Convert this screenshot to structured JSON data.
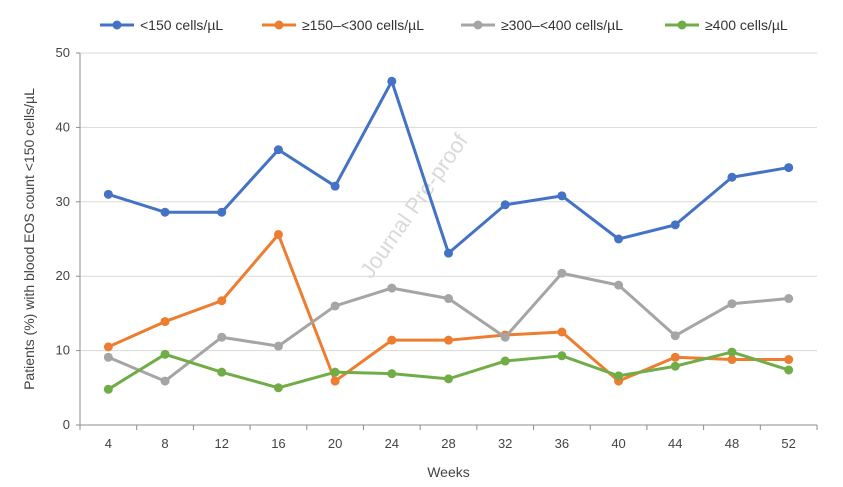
{
  "chart_data": {
    "type": "line",
    "xlabel": "Weeks",
    "ylabel": "Patients (%) with blood EOS count <150 cells/µL",
    "categories": [
      "4",
      "8",
      "12",
      "16",
      "20",
      "24",
      "28",
      "32",
      "36",
      "40",
      "44",
      "48",
      "52"
    ],
    "ylim": [
      0,
      50
    ],
    "yticks": [
      0,
      10,
      20,
      30,
      40,
      50
    ],
    "grid": true,
    "legend_position": "top",
    "watermark": "Journal Pre-proof",
    "series": [
      {
        "name": "<150 cells/µL",
        "color": "#4472C4",
        "values": [
          31,
          28.6,
          28.6,
          37,
          32.1,
          46.2,
          23.1,
          29.6,
          30.8,
          25,
          26.9,
          33.3,
          34.6
        ]
      },
      {
        "name": "≥150–<300 cells/µL",
        "color": "#ED7D31",
        "values": [
          10.5,
          13.9,
          16.7,
          25.6,
          5.9,
          11.4,
          11.4,
          12.1,
          12.5,
          5.9,
          9.1,
          8.8,
          8.8
        ]
      },
      {
        "name": "≥300–<400 cells/µL",
        "color": "#A5A5A5",
        "values": [
          9.1,
          5.9,
          11.8,
          10.6,
          16,
          18.4,
          17,
          11.8,
          20.4,
          18.8,
          12,
          16.3,
          17
        ]
      },
      {
        "name": "≥400 cells/µL",
        "color": "#70AD47",
        "values": [
          4.8,
          9.5,
          7.1,
          5,
          7.1,
          6.9,
          6.2,
          8.6,
          9.3,
          6.6,
          7.9,
          9.8,
          7.4
        ]
      }
    ]
  }
}
